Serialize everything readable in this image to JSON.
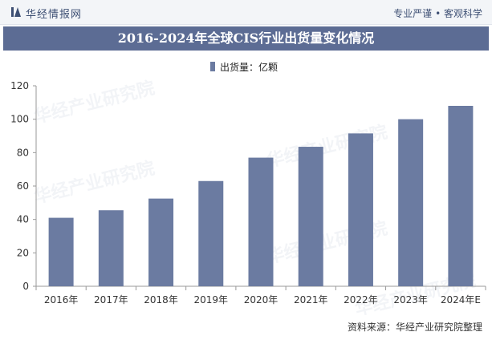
{
  "header": {
    "logo_text": "华经情报网",
    "slogan": "专业严谨 • 客观科学"
  },
  "colors": {
    "bar": "#6b7ba1",
    "title_band": "#5c6c94",
    "axis": "#999999"
  },
  "watermark": "华经产业研究院",
  "footer": {
    "source": "资料来源：华经产业研究院整理"
  },
  "chart_data": {
    "type": "bar",
    "title": "2016-2024年全球CIS行业出货量变化情况",
    "categories": [
      "2016年",
      "2017年",
      "2018年",
      "2019年",
      "2020年",
      "2021年",
      "2022年",
      "2023年",
      "2024年E"
    ],
    "series": [
      {
        "name": "出货量：亿颗",
        "values": [
          41,
          45.5,
          52.5,
          63,
          77,
          83.5,
          91.5,
          100,
          108
        ]
      }
    ],
    "ylim": [
      0,
      120
    ],
    "yticks": [
      0,
      20,
      40,
      60,
      80,
      100,
      120
    ],
    "legend": "top-center",
    "grid": false
  }
}
